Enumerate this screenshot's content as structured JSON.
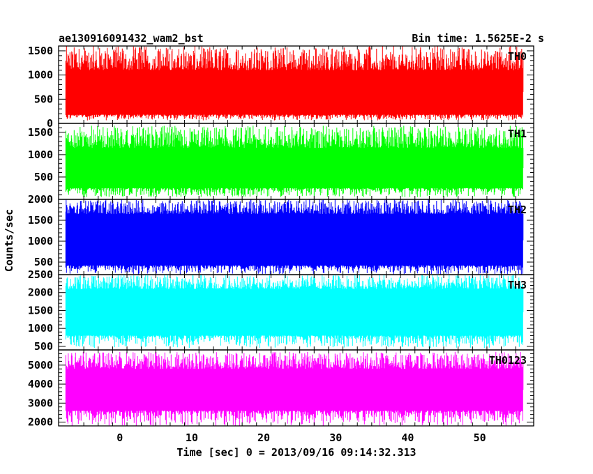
{
  "header": {
    "title": "ae130916091432_wam2_bst",
    "bin_time": "Bin time: 1.5625E-2 s"
  },
  "chart_data": {
    "type": "line",
    "xlabel": "Time [sec] 0 = 2013/09/16 09:14:32.313",
    "ylabel": "Counts/sec",
    "xlim": [
      -8.5,
      57.5
    ],
    "x_ticks": [
      0,
      10,
      20,
      30,
      40,
      50
    ],
    "x_range": [
      -7.5,
      56.0
    ],
    "panels": [
      {
        "name": "TH0",
        "color": "#ff0000",
        "ylim": [
          0,
          1600
        ],
        "ticks": [
          0,
          500,
          1000,
          1500
        ],
        "band": [
          60,
          1600
        ],
        "core": [
          180,
          1100
        ],
        "mean": 650
      },
      {
        "name": "TH1",
        "color": "#00ff00",
        "ylim": [
          0,
          1700
        ],
        "ticks": [
          500,
          1000,
          1500
        ],
        "band": [
          50,
          1650
        ],
        "core": [
          250,
          1150
        ],
        "mean": 700
      },
      {
        "name": "TH2",
        "color": "#0000ff",
        "ylim": [
          200,
          2000
        ],
        "ticks": [
          500,
          1000,
          1500,
          2000
        ],
        "band": [
          200,
          2000
        ],
        "core": [
          420,
          1650
        ],
        "mean": 1020
      },
      {
        "name": "TH3",
        "color": "#00ffff",
        "ylim": [
          400,
          2500
        ],
        "ticks": [
          500,
          1000,
          1500,
          2000,
          2500
        ],
        "band": [
          450,
          2500
        ],
        "core": [
          800,
          2100
        ],
        "mean": 1450
      },
      {
        "name": "TH0123",
        "color": "#ff00ff",
        "ylim": [
          1800,
          5800
        ],
        "ticks": [
          2000,
          3000,
          4000,
          5000
        ],
        "band": [
          1800,
          5700
        ],
        "core": [
          2600,
          4800
        ],
        "mean": 3700
      }
    ]
  }
}
